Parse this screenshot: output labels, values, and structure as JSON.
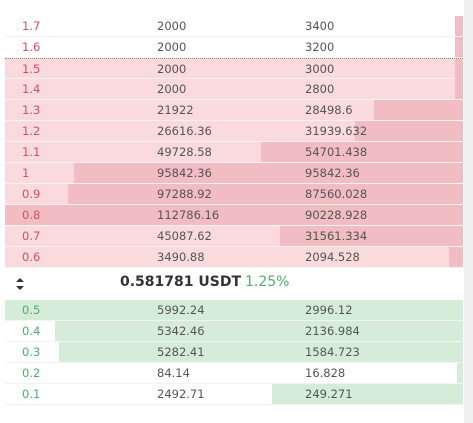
{
  "asks": [
    {
      "price": 1.7,
      "amount": 2000,
      "total": 3400
    },
    {
      "price": 1.6,
      "amount": 2000,
      "total": 3200
    },
    {
      "price": 1.5,
      "amount": 2000,
      "total": 3000
    },
    {
      "price": 1.4,
      "amount": 2000,
      "total": 2800
    },
    {
      "price": 1.3,
      "amount": 21922,
      "total": 28498.6
    },
    {
      "price": 1.2,
      "amount": 26616.36,
      "total": 31939.632
    },
    {
      "price": 1.1,
      "amount": 49728.58,
      "total": 54701.438
    },
    {
      "price": 1,
      "amount": 95842.36,
      "total": 95842.36
    },
    {
      "price": 0.9,
      "amount": 97288.92,
      "total": 87560.028
    },
    {
      "price": 0.8,
      "amount": 112786.16,
      "total": 90228.928
    },
    {
      "price": 0.7,
      "amount": 45087.62,
      "total": 31561.334
    },
    {
      "price": 0.6,
      "amount": 3490.88,
      "total": 2094.528
    }
  ],
  "last": {
    "price": "0.581781 USDT",
    "change": "1.25%"
  },
  "bids": [
    {
      "price": 0.5,
      "amount": 5992.24,
      "total": 2996.12
    },
    {
      "price": 0.4,
      "amount": 5342.46,
      "total": 2136.984
    },
    {
      "price": 0.3,
      "amount": 5282.41,
      "total": 1584.723
    },
    {
      "price": 0.2,
      "amount": 84.14,
      "total": 16.828
    },
    {
      "price": 0.1,
      "amount": 2492.71,
      "total": 249.271
    }
  ]
}
